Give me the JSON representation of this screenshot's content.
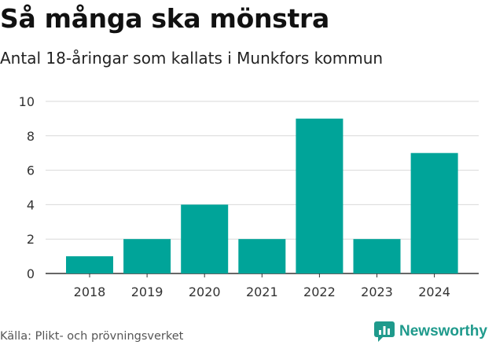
{
  "title": "Så många ska mönstra",
  "subtitle": "Antal 18-åringar som kallats i Munkfors kommun",
  "source": "Källa: Plikt- och prövningsverket",
  "brand": {
    "name": "Newsworthy",
    "icon": "newsworthy-logo-icon",
    "color": "#1f9a8c"
  },
  "chart_data": {
    "type": "bar",
    "categories": [
      "2018",
      "2019",
      "2020",
      "2021",
      "2022",
      "2023",
      "2024"
    ],
    "values": [
      1,
      2,
      4,
      2,
      9,
      2,
      7
    ],
    "ylim": [
      0,
      10
    ],
    "yticks": [
      0,
      2,
      4,
      6,
      8,
      10
    ],
    "grid": true,
    "bar_color": "#00a499"
  }
}
